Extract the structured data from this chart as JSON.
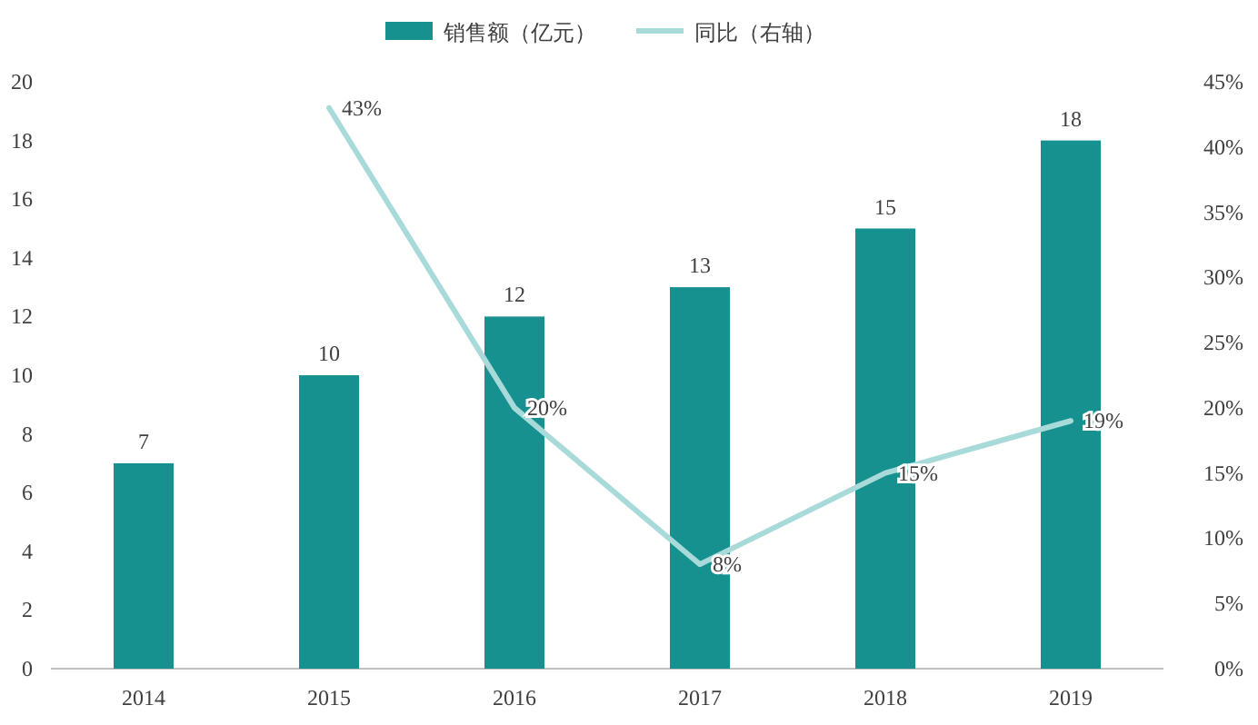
{
  "chart_data": {
    "type": "bar",
    "categories": [
      "2014",
      "2015",
      "2016",
      "2017",
      "2018",
      "2019"
    ],
    "series": [
      {
        "name": "销售额（亿元）",
        "color": "#17918f",
        "values": [
          7,
          10,
          12,
          13,
          15,
          18
        ],
        "value_labels": [
          "7",
          "10",
          "12",
          "13",
          "15",
          "18"
        ]
      },
      {
        "name": "同比（右轴）",
        "type": "line",
        "axis": "y2",
        "color": "#a9dada",
        "values": [
          null,
          43,
          20,
          8,
          15,
          19
        ],
        "value_labels": [
          null,
          "43%",
          "20%",
          "8%",
          "15%",
          "19%"
        ]
      }
    ],
    "ylim": [
      0,
      20
    ],
    "yticks": [
      0,
      2,
      4,
      6,
      8,
      10,
      12,
      14,
      16,
      18,
      20
    ],
    "y2lim": [
      0,
      45
    ],
    "y2ticks": [
      {
        "value": 0,
        "label": "0%"
      },
      {
        "value": 5,
        "label": "5%"
      },
      {
        "value": 10,
        "label": "10%"
      },
      {
        "value": 15,
        "label": "15%"
      },
      {
        "value": 20,
        "label": "20%"
      },
      {
        "value": 25,
        "label": "25%"
      },
      {
        "value": 30,
        "label": "30%"
      },
      {
        "value": 35,
        "label": "35%"
      },
      {
        "value": 40,
        "label": "40%"
      },
      {
        "value": 45,
        "label": "45%"
      }
    ],
    "legend": "top"
  }
}
